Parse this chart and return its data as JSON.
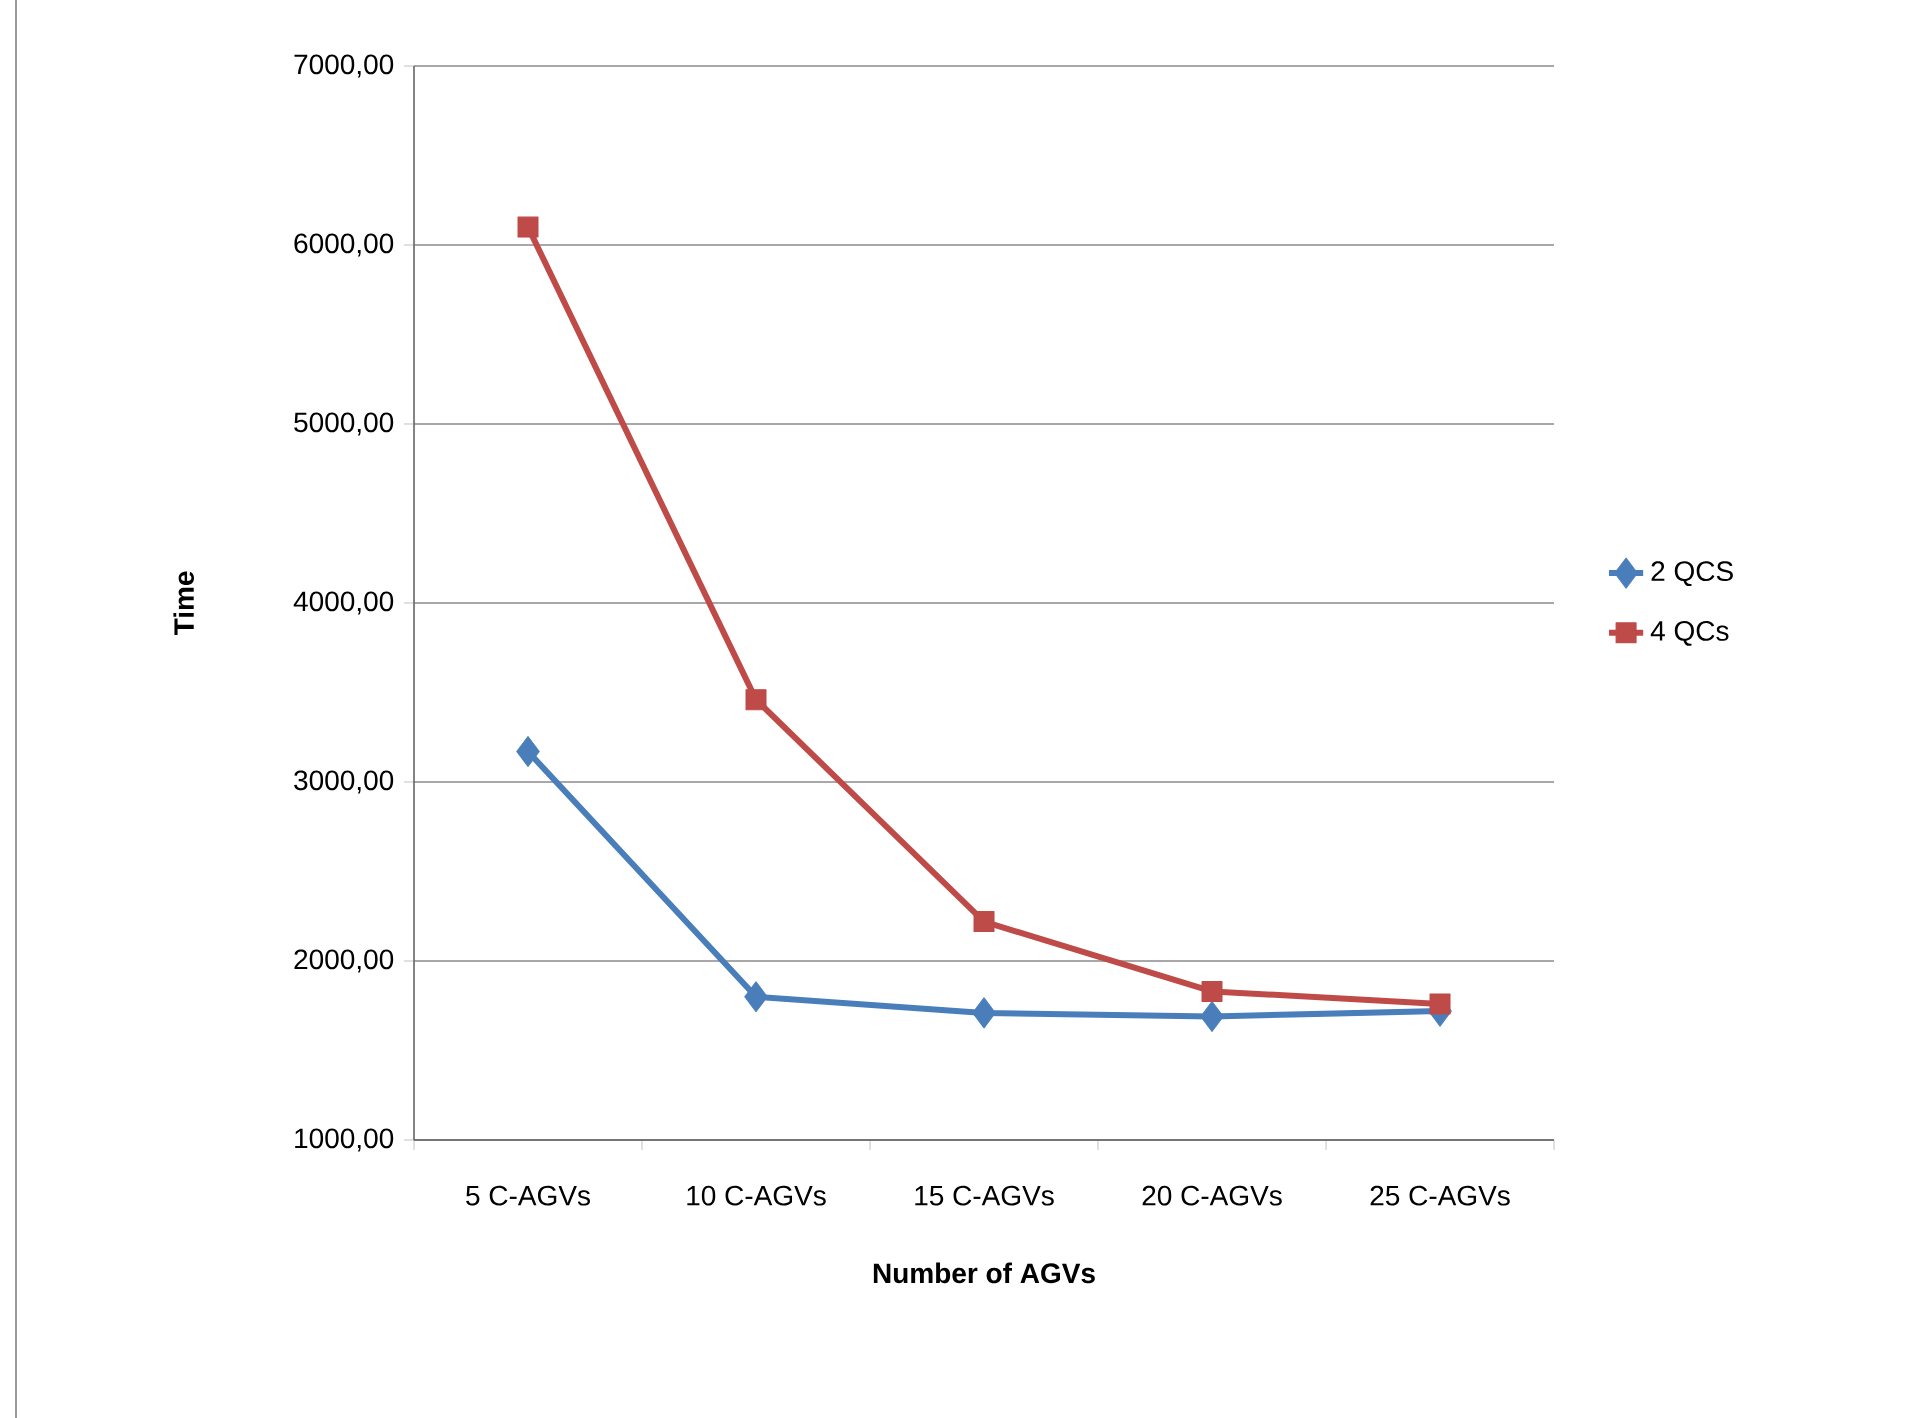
{
  "chart_data": {
    "type": "line",
    "xlabel": "Number of AGVs",
    "ylabel": "Time",
    "categories": [
      "5 C-AGVs",
      "10 C-AGVs",
      "15 C-AGVs",
      "20 C-AGVs",
      "25 C-AGVs"
    ],
    "series": [
      {
        "name": "2 QCS",
        "color": "#4a7ebb",
        "marker": "diamond",
        "values": [
          3170,
          1800,
          1710,
          1690,
          1720
        ]
      },
      {
        "name": "4 QCs",
        "color": "#be4b48",
        "marker": "square",
        "values": [
          6100,
          3460,
          2220,
          1830,
          1760
        ]
      }
    ],
    "ylim": [
      1000,
      7000
    ],
    "yticks": [
      {
        "value": 1000,
        "label": "1000,00"
      },
      {
        "value": 2000,
        "label": "2000,00"
      },
      {
        "value": 3000,
        "label": "3000,00"
      },
      {
        "value": 4000,
        "label": "4000,00"
      },
      {
        "value": 5000,
        "label": "5000,00"
      },
      {
        "value": 6000,
        "label": "6000,00"
      },
      {
        "value": 7000,
        "label": "7000,00"
      }
    ],
    "grid": "y",
    "legend": "right",
    "line_style": "solid"
  }
}
